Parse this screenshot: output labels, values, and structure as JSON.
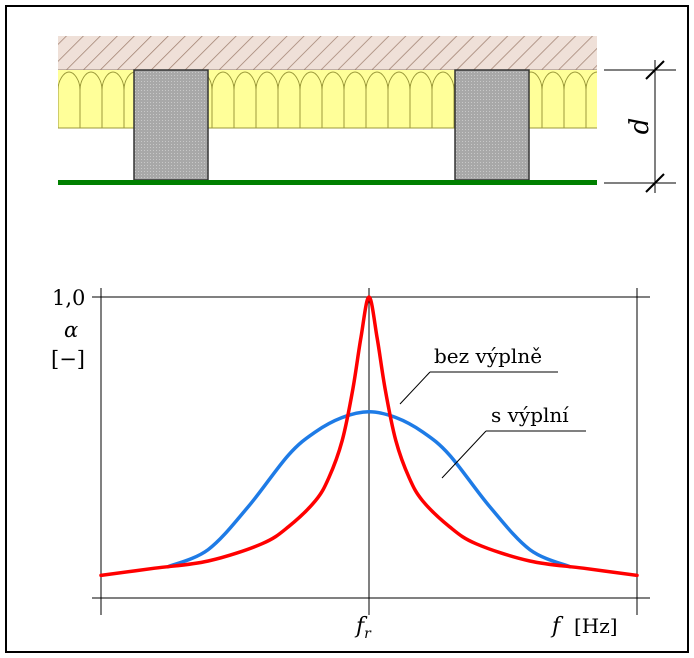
{
  "top_diagram": {
    "dimension_label": "d",
    "colors": {
      "ceiling_hatch": "#a08070",
      "ceiling_fill": "#efe0d8",
      "insulation": "#ffff99",
      "insulation_coil": "#9c9a3a",
      "joist": "#a8a8a8",
      "panel": "#008000"
    }
  },
  "chart_data": {
    "type": "line",
    "ylabel_symbol": "α",
    "ylabel_unit": "[−]",
    "y_max_tick": "1,0",
    "x_tick": "f",
    "x_tick_subscript": "r",
    "xlabel_symbol": "f",
    "xlabel_unit": "[Hz]",
    "ylim": [
      0,
      1.0
    ],
    "xlim": [
      -1,
      1
    ],
    "series": [
      {
        "name": "bez výplně",
        "color": "#ff0000",
        "x": [
          -1,
          -0.8,
          -0.6,
          -0.4,
          -0.3,
          -0.2,
          -0.15,
          -0.1,
          -0.06,
          -0.03,
          0,
          0.03,
          0.06,
          0.1,
          0.15,
          0.2,
          0.3,
          0.4,
          0.6,
          0.8,
          1
        ],
        "y": [
          0.03,
          0.055,
          0.08,
          0.14,
          0.2,
          0.29,
          0.37,
          0.5,
          0.68,
          0.86,
          1.0,
          0.86,
          0.68,
          0.5,
          0.37,
          0.29,
          0.2,
          0.14,
          0.08,
          0.055,
          0.03
        ]
      },
      {
        "name": "s výplní",
        "color": "#1e7be6",
        "x": [
          -0.75,
          -0.6,
          -0.45,
          -0.3,
          -0.2,
          -0.1,
          0,
          0.1,
          0.2,
          0.3,
          0.45,
          0.6,
          0.75
        ],
        "y": [
          0.06,
          0.12,
          0.27,
          0.45,
          0.53,
          0.58,
          0.6,
          0.58,
          0.53,
          0.45,
          0.27,
          0.12,
          0.06
        ]
      }
    ],
    "grid": false
  }
}
